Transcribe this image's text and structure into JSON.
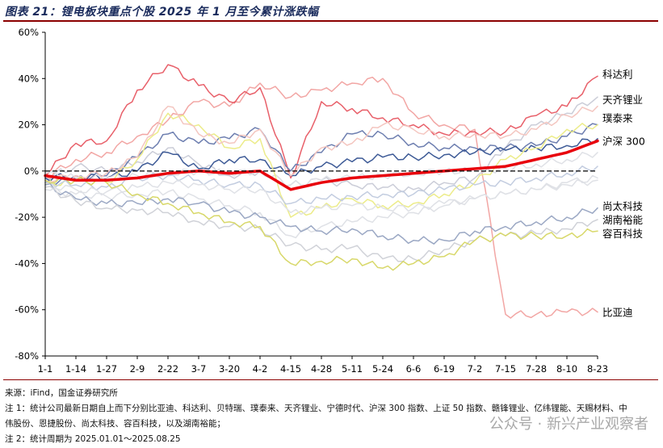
{
  "header": {
    "title": "图表 21：锂电板块重点个股 2025 年 1 月至今累计涨跌幅"
  },
  "footer": {
    "source": "来源：iFind，国金证券研究所",
    "note1_line1": "注 1：统计公司最新日期自上而下分别比亚迪、科达利、贝特瑞、璞泰来、天齐锂业、宁德时代、沪深 300 指数、上证 50 指数、赣锋锂业、亿纬锂能、天赐材料、中",
    "note1_line2": "伟股份、恩捷股份、尚太科技、容百科技，以及湖南裕能；",
    "note2": "注 2：统计周期为 2025.01.01～2025.08.25",
    "watermark": "公众号 · 新兴产业观察者"
  },
  "colors": {
    "hs300": "#e8000b",
    "kedali": "#e8606a",
    "byd": "#f2a6a4",
    "tianqi": "#cbcdd8",
    "putailai": "#6e7fb0",
    "shangtai": "#9ba8c4",
    "hunan": "#d0d2d8",
    "rongbai": "#d8d86a",
    "yellow2": "#ecec8a",
    "lightblue": "#c3cde0",
    "pink2": "#f4c6c0",
    "grey": "#dfe1e6",
    "navy": "#3d5a96"
  },
  "chart_data": {
    "type": "line",
    "title": "锂电板块重点个股 2025 年 1 月至今累计涨跌幅",
    "ylim": [
      -80,
      60
    ],
    "yticks": [
      -80,
      -60,
      -40,
      -20,
      0,
      20,
      40,
      60
    ],
    "ytick_labels": [
      "-80%",
      "-60%",
      "-40%",
      "-20%",
      "0%",
      "20%",
      "40%",
      "60%"
    ],
    "x_labels": [
      "1-1",
      "1-14",
      "1-27",
      "2-9",
      "2-22",
      "3-7",
      "3-20",
      "4-2",
      "4-15",
      "4-28",
      "5-11",
      "5-24",
      "6-6",
      "6-19",
      "7-2",
      "7-15",
      "7-28",
      "8-10",
      "8-23"
    ],
    "x_points": 19,
    "legend_labels": [
      {
        "name": "科达利",
        "at": 42
      },
      {
        "name": "天齐锂业",
        "at": 31
      },
      {
        "name": "璞泰来",
        "at": 23
      },
      {
        "name": "沪深 300",
        "at": 13
      },
      {
        "name": "尚太科技",
        "at": -15
      },
      {
        "name": "湖南裕能",
        "at": -21
      },
      {
        "name": "容百科技",
        "at": -27
      },
      {
        "name": "比亚迪",
        "at": -61
      }
    ],
    "series": [
      {
        "name": "比亚迪",
        "color_key": "byd",
        "width": 1.5,
        "values": [
          -3,
          5,
          8,
          15,
          22,
          30,
          28,
          38,
          32,
          35,
          38,
          40,
          25,
          20,
          18,
          -62,
          -62,
          -61,
          -61
        ]
      },
      {
        "name": "科达利",
        "color_key": "kedali",
        "width": 1.5,
        "values": [
          -2,
          12,
          13,
          35,
          46,
          37,
          30,
          36,
          -3,
          30,
          27,
          23,
          20,
          16,
          17,
          17,
          24,
          28,
          41
        ]
      },
      {
        "name": "天齐锂业",
        "color_key": "tianqi",
        "width": 1.5,
        "values": [
          -3,
          2,
          0,
          4,
          10,
          3,
          -2,
          0,
          -6,
          -4,
          -6,
          -7,
          -8,
          -5,
          -3,
          10,
          20,
          25,
          32
        ]
      },
      {
        "name": "璞泰来",
        "color_key": "putailai",
        "width": 1.5,
        "values": [
          -5,
          -3,
          -2,
          6,
          16,
          12,
          14,
          18,
          0,
          8,
          16,
          16,
          12,
          10,
          10,
          10,
          11,
          15,
          20
        ]
      },
      {
        "name": "宁德时代",
        "color_key": "navy",
        "width": 1.5,
        "values": [
          -3,
          -2,
          -3,
          0,
          8,
          1,
          5,
          5,
          -2,
          2,
          4,
          6,
          6,
          7,
          8,
          9,
          10,
          11,
          14
        ]
      },
      {
        "name": "沪深 300",
        "color_key": "hs300",
        "width": 3.5,
        "values": [
          -2,
          -4,
          -4,
          -3,
          -1,
          0,
          -1,
          0,
          -8,
          -5,
          -3,
          -2,
          -1,
          0,
          1,
          2,
          5,
          8,
          13
        ]
      },
      {
        "name": "上证 50 指数",
        "color_key": "grey",
        "width": 1.5,
        "values": [
          -1,
          -3,
          -3,
          -2,
          -1,
          0,
          -1,
          0,
          -6,
          -4,
          -3,
          -2,
          -1,
          0,
          0,
          1,
          3,
          5,
          8
        ]
      },
      {
        "name": "赣锋锂业",
        "color_key": "yellow2",
        "width": 1.5,
        "values": [
          -6,
          -4,
          -5,
          5,
          25,
          20,
          10,
          14,
          -20,
          -16,
          -12,
          -15,
          -14,
          -10,
          -5,
          5,
          10,
          18,
          20
        ]
      },
      {
        "name": "亿纬锂能",
        "color_key": "pink2",
        "width": 1.5,
        "values": [
          -4,
          -2,
          -1,
          6,
          28,
          16,
          12,
          18,
          -2,
          10,
          12,
          20,
          18,
          15,
          16,
          15,
          18,
          24,
          28
        ]
      },
      {
        "name": "天赐材料",
        "color_key": "lightblue",
        "width": 1.5,
        "values": [
          -5,
          -6,
          -7,
          -3,
          -2,
          -4,
          -6,
          -6,
          -14,
          -12,
          -11,
          -10,
          -10,
          -8,
          -6,
          -5,
          -3,
          -1,
          2
        ]
      },
      {
        "name": "中伟股份",
        "color_key": "grey",
        "width": 1.5,
        "values": [
          -6,
          -8,
          -9,
          -7,
          -5,
          -6,
          -8,
          -8,
          -18,
          -16,
          -15,
          -16,
          -16,
          -14,
          -12,
          -10,
          -8,
          -5,
          -3
        ]
      },
      {
        "name": "恩捷股份",
        "color_key": "grey",
        "width": 1.5,
        "values": [
          -8,
          -10,
          -11,
          -10,
          -9,
          -12,
          -15,
          -18,
          -28,
          -24,
          -22,
          -20,
          -18,
          -15,
          -12,
          -10,
          -8,
          -6,
          -4
        ]
      },
      {
        "name": "尚太科技",
        "color_key": "shangtai",
        "width": 1.5,
        "values": [
          -6,
          -12,
          -14,
          -14,
          -12,
          -14,
          -18,
          -20,
          -24,
          -26,
          -25,
          -28,
          -30,
          -30,
          -26,
          -24,
          -22,
          -20,
          -16
        ]
      },
      {
        "name": "湖南裕能",
        "color_key": "hunan",
        "width": 1.5,
        "values": [
          -7,
          -13,
          -16,
          -17,
          -18,
          -22,
          -24,
          -25,
          -32,
          -34,
          -33,
          -38,
          -38,
          -34,
          -30,
          -28,
          -27,
          -25,
          -21
        ]
      },
      {
        "name": "容百科技",
        "color_key": "rongbai",
        "width": 1.5,
        "values": [
          -4,
          -4,
          -5,
          -10,
          -14,
          -18,
          -22,
          -24,
          -40,
          -39,
          -38,
          -42,
          -40,
          -37,
          -30,
          -28,
          -28,
          -28,
          -26
        ]
      }
    ]
  }
}
